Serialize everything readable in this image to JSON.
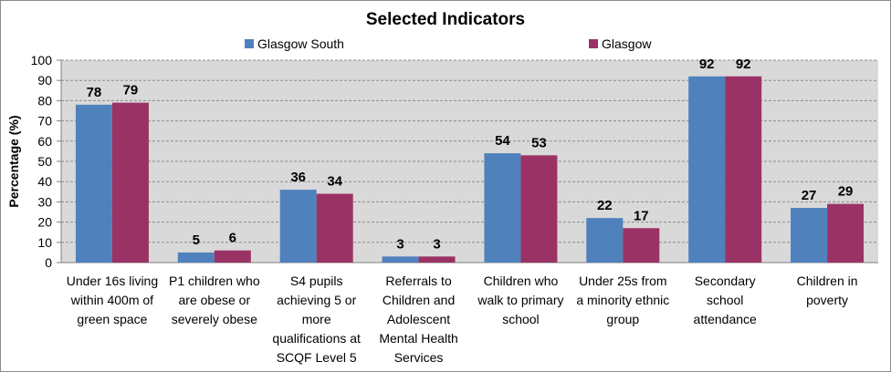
{
  "colors": {
    "plot_background": "#d9d9d9",
    "gridline": "#8c8c8c",
    "series_glasgow_south": "#4f81bd",
    "series_glasgow": "#9b3265"
  },
  "chart_data": {
    "type": "bar",
    "title": "Selected Indicators",
    "xlabel": "",
    "ylabel": "Percentage (%)",
    "ylim": [
      0,
      100
    ],
    "yticks": [
      "0",
      "10",
      "20",
      "30",
      "40",
      "50",
      "60",
      "70",
      "80",
      "90",
      "100"
    ],
    "grid": true,
    "legend_position": "top",
    "categories": [
      [
        "Under 16s living",
        "within 400m of",
        "green space"
      ],
      [
        "P1 children who",
        "are obese or",
        "severely obese"
      ],
      [
        "S4 pupils",
        "achieving 5 or",
        "more",
        "qualifications at",
        "SCQF Level 5"
      ],
      [
        "Referrals to",
        "Children and",
        "Adolescent",
        "Mental Health",
        "Services"
      ],
      [
        "Children who",
        "walk to primary",
        "school"
      ],
      [
        "Under 25s from",
        "a minority ethnic",
        "group"
      ],
      [
        "Secondary",
        "school",
        "attendance"
      ],
      [
        "Children in",
        "poverty"
      ]
    ],
    "series": [
      {
        "name": "Glasgow South",
        "values": [
          78,
          5,
          36,
          3,
          54,
          22,
          92,
          27
        ],
        "labels": [
          "78",
          "5",
          "36",
          "3",
          "54",
          "22",
          "92",
          "27"
        ]
      },
      {
        "name": "Glasgow",
        "values": [
          79,
          6,
          34,
          3,
          53,
          17,
          92,
          29
        ],
        "labels": [
          "79",
          "6",
          "34",
          "3",
          "53",
          "17",
          "92",
          "29"
        ]
      }
    ]
  }
}
